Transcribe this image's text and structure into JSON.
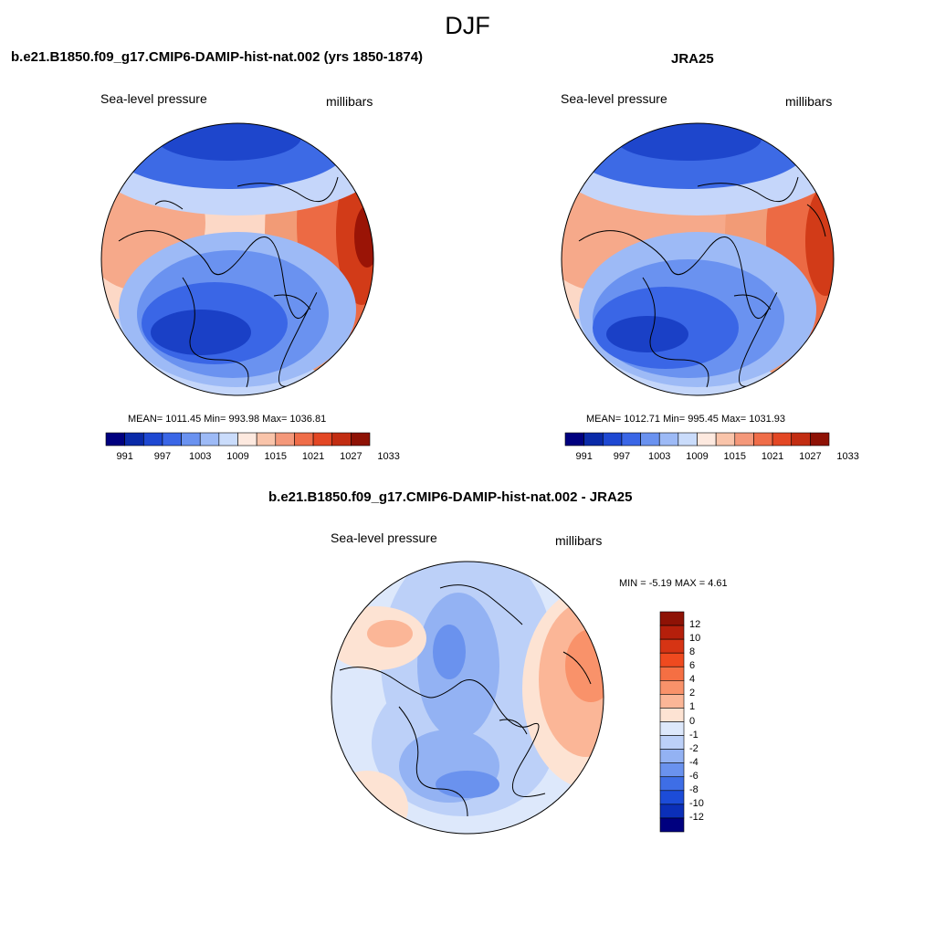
{
  "figure": {
    "title": "DJF"
  },
  "panels": [
    {
      "title": "b.e21.B1850.f09_g17.CMIP6-DAMIP-hist-nat.002 (yrs 1850-1874)",
      "left_label": "Sea-level pressure",
      "right_label": "millibars",
      "stats": "MEAN= 1011.45   Min= 993.98   Max= 1036.81",
      "colorbar": {
        "ticks": [
          "991",
          "997",
          "1003",
          "1009",
          "1015",
          "1021",
          "1027",
          "1033"
        ],
        "colors": [
          "#00007f",
          "#0a2aa8",
          "#1e48d2",
          "#3a66e6",
          "#6a92f0",
          "#9dbaf6",
          "#cadcfb",
          "#fde9df",
          "#f9c4aa",
          "#f4987a",
          "#ef6d49",
          "#e34724",
          "#c22d12",
          "#8e1205"
        ]
      }
    },
    {
      "title": "JRA25",
      "left_label": "Sea-level pressure",
      "right_label": "millibars",
      "stats": "MEAN= 1012.71   Min= 995.45   Max= 1031.93",
      "colorbar": {
        "ticks": [
          "991",
          "997",
          "1003",
          "1009",
          "1015",
          "1021",
          "1027",
          "1033"
        ],
        "colors": [
          "#00007f",
          "#0a2aa8",
          "#1e48d2",
          "#3a66e6",
          "#6a92f0",
          "#9dbaf6",
          "#cadcfb",
          "#fde9df",
          "#f9c4aa",
          "#f4987a",
          "#ef6d49",
          "#e34724",
          "#c22d12",
          "#8e1205"
        ]
      }
    },
    {
      "title": "b.e21.B1850.f09_g17.CMIP6-DAMIP-hist-nat.002 - JRA25",
      "left_label": "Sea-level pressure",
      "right_label": "millibars",
      "stats": "MIN =  -5.19 MAX =   4.61",
      "colorbar": {
        "ticks": [
          "12",
          "10",
          "8",
          "6",
          "4",
          "2",
          "1",
          "0",
          "-1",
          "-2",
          "-4",
          "-6",
          "-8",
          "-10",
          "-12"
        ],
        "colors": [
          "#8e1205",
          "#b51f0b",
          "#d63414",
          "#ef4a1f",
          "#f56f43",
          "#f9926a",
          "#fbb697",
          "#fde3d3",
          "#dde8fb",
          "#bcd0f8",
          "#93b2f3",
          "#6a92ee",
          "#3e6ee6",
          "#1c4cd8",
          "#0b2fb8",
          "#00007f"
        ]
      }
    }
  ]
}
